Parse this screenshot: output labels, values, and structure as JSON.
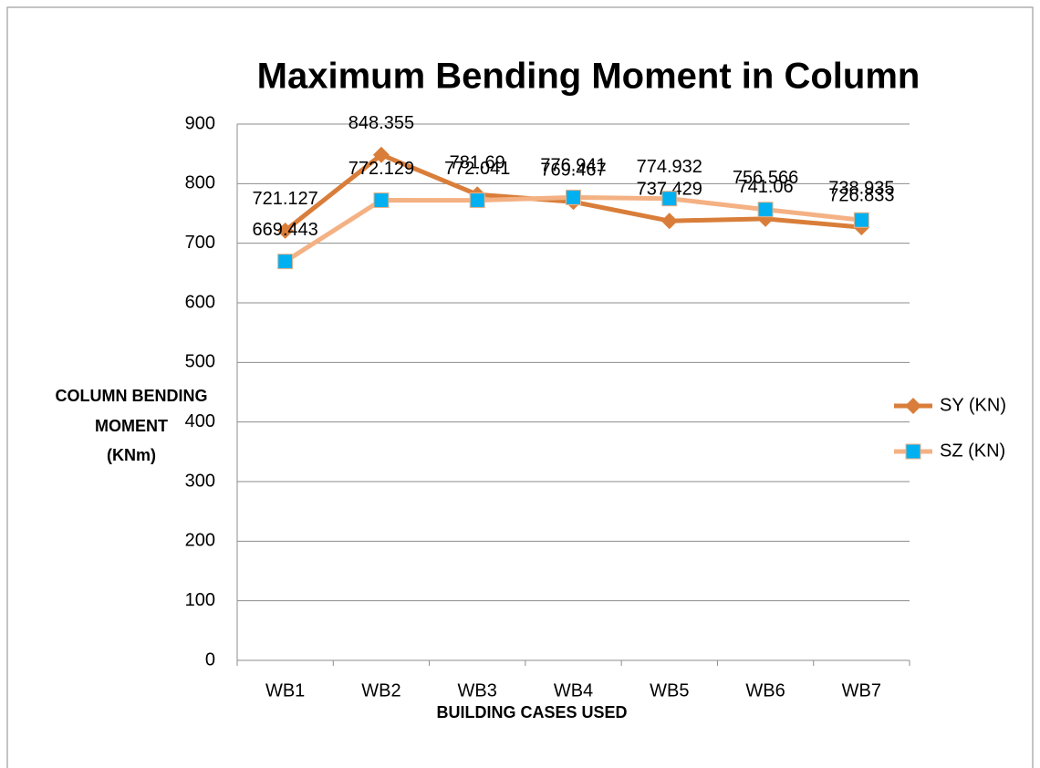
{
  "chart_data": {
    "type": "line",
    "title": "Maximum Bending Moment in Column",
    "x_label": "BUILDING CASES USED",
    "y_label": [
      "COLUMN BENDING",
      "MOMENT",
      "(KNm)"
    ],
    "categories": [
      "WB1",
      "WB2",
      "WB3",
      "WB4",
      "WB5",
      "WB6",
      "WB7"
    ],
    "series": [
      {
        "name": "SY (KN)",
        "color": "#D97E3A",
        "marker": "diamond",
        "marker_color": "#D97E3A",
        "values": [
          721.127,
          848.355,
          781.69,
          769.467,
          737.429,
          741.06,
          726.833
        ]
      },
      {
        "name": "SZ (KN)",
        "color": "#F4B183",
        "marker": "square",
        "marker_color": "#00B0F0",
        "values": [
          669.443,
          772.129,
          772.041,
          776.941,
          774.932,
          756.566,
          738.935
        ]
      }
    ],
    "ylim": [
      0,
      900
    ],
    "yticks": [
      0,
      100,
      200,
      300,
      400,
      500,
      600,
      700,
      800,
      900
    ],
    "grid": true,
    "legend": "right"
  }
}
